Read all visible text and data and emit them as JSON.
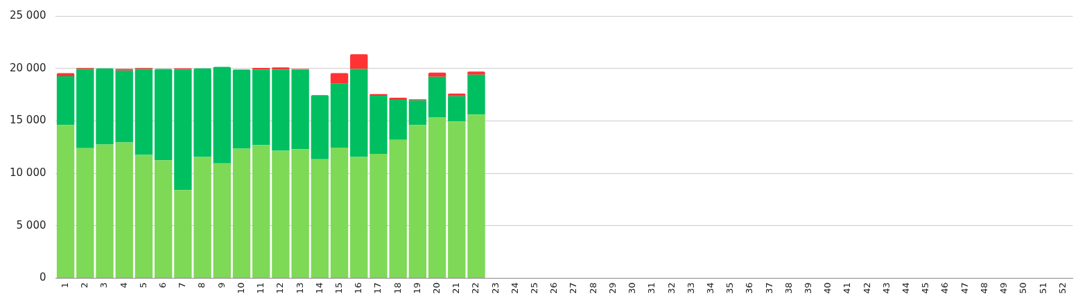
{
  "chart_data": {
    "type": "bar",
    "stacked": true,
    "categories": [
      "1",
      "2",
      "3",
      "4",
      "5",
      "6",
      "7",
      "8",
      "9",
      "10",
      "11",
      "12",
      "13",
      "14",
      "15",
      "16",
      "17",
      "18",
      "19",
      "20",
      "21",
      "22",
      "23",
      "24",
      "25",
      "26",
      "27",
      "28",
      "29",
      "30",
      "31",
      "32",
      "33",
      "34",
      "35",
      "36",
      "37",
      "38",
      "39",
      "40",
      "41",
      "42",
      "43",
      "44",
      "45",
      "46",
      "47",
      "48",
      "49",
      "50",
      "51",
      "52"
    ],
    "series": [
      {
        "color": "#7ed957",
        "values": [
          14600,
          12400,
          12750,
          12950,
          11750,
          11250,
          8400,
          11550,
          10950,
          12350,
          12700,
          12150,
          12300,
          11350,
          12450,
          11550,
          11850,
          13200,
          14600,
          15350,
          14950,
          15600,
          null,
          null,
          null,
          null,
          null,
          null,
          null,
          null,
          null,
          null,
          null,
          null,
          null,
          null,
          null,
          null,
          null,
          null,
          null,
          null,
          null,
          null,
          null,
          null,
          null,
          null,
          null,
          null,
          null,
          null
        ]
      },
      {
        "color": "#00bf60",
        "values": [
          4650,
          7550,
          7250,
          6850,
          8200,
          8700,
          11500,
          8450,
          9200,
          7550,
          7200,
          7750,
          7600,
          6100,
          6100,
          8400,
          5550,
          3800,
          2350,
          3850,
          2400,
          3800,
          null,
          null,
          null,
          null,
          null,
          null,
          null,
          null,
          null,
          null,
          null,
          null,
          null,
          null,
          null,
          null,
          null,
          null,
          null,
          null,
          null,
          null,
          null,
          null,
          null,
          null,
          null,
          null,
          null,
          null
        ]
      },
      {
        "color": "#ff3333",
        "values": [
          300,
          100,
          0,
          150,
          100,
          0,
          100,
          0,
          0,
          0,
          150,
          200,
          50,
          0,
          1000,
          1400,
          150,
          200,
          100,
          400,
          250,
          300,
          null,
          null,
          null,
          null,
          null,
          null,
          null,
          null,
          null,
          null,
          null,
          null,
          null,
          null,
          null,
          null,
          null,
          null,
          null,
          null,
          null,
          null,
          null,
          null,
          null,
          null,
          null,
          null,
          null,
          null
        ]
      }
    ],
    "ylim": [
      0,
      25000
    ],
    "yticks": [
      {
        "value": 0,
        "label": "0"
      },
      {
        "value": 5000,
        "label": "5 000"
      },
      {
        "value": 10000,
        "label": "10 000"
      },
      {
        "value": 15000,
        "label": "15 000"
      },
      {
        "value": 20000,
        "label": "20 000"
      },
      {
        "value": 25000,
        "label": "25 000"
      }
    ],
    "grid": "y",
    "legend": false
  }
}
